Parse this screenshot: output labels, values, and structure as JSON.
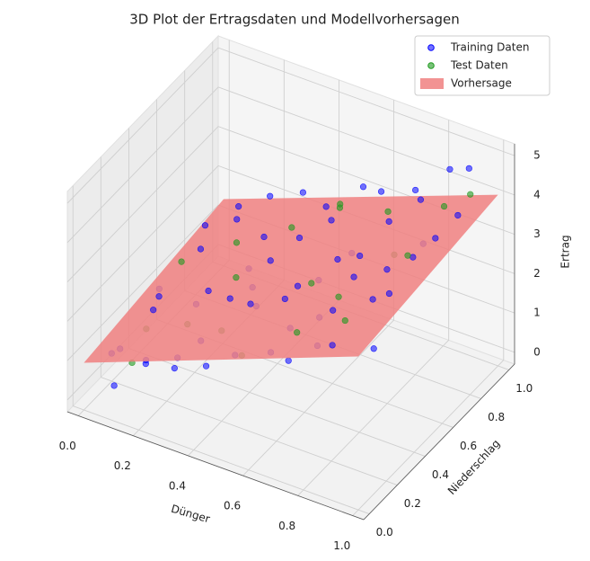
{
  "chart_data": {
    "type": "scatter3d",
    "title": "3D Plot der Ertragsdaten und Modellvorhersagen",
    "xlabel": "Dünger",
    "ylabel": "Niederschlag",
    "zlabel": "Ertrag",
    "xlim": [
      -0.04,
      1.04
    ],
    "ylim": [
      -0.04,
      1.04
    ],
    "zlim": [
      -0.3,
      5.3
    ],
    "xticks": [
      {
        "value": 0,
        "label": "0.0"
      },
      {
        "value": 0.2,
        "label": "0.2"
      },
      {
        "value": 0.4,
        "label": "0.4"
      },
      {
        "value": 0.6,
        "label": "0.6"
      },
      {
        "value": 0.8,
        "label": "0.8"
      },
      {
        "value": 1,
        "label": "1.0"
      }
    ],
    "yticks": [
      {
        "value": 0,
        "label": "0.0"
      },
      {
        "value": 0.2,
        "label": "0.2"
      },
      {
        "value": 0.4,
        "label": "0.4"
      },
      {
        "value": 0.6,
        "label": "0.6"
      },
      {
        "value": 0.8,
        "label": "0.8"
      },
      {
        "value": 1,
        "label": "1.0"
      }
    ],
    "zticks": [
      0,
      1,
      2,
      3,
      4,
      5
    ],
    "grid": true,
    "legend": "upper right",
    "series": [
      {
        "name": "Training Daten",
        "color": "#0000ff",
        "alpha": 0.55,
        "x": [
          0.05,
          0.1,
          0.02,
          0.15,
          0.08,
          0.2,
          0.25,
          0.3,
          0.22,
          0.35,
          0.4,
          0.45,
          0.38,
          0.5,
          0.55,
          0.52,
          0.6,
          0.65,
          0.7,
          0.68,
          0.75,
          0.8,
          0.85,
          0.82,
          0.9,
          0.95,
          0.92,
          0.98,
          0.12,
          0.28,
          0.33,
          0.42,
          0.47,
          0.58,
          0.62,
          0.72,
          0.77,
          0.87,
          0.97,
          0.03,
          0.18,
          0.06,
          0.27,
          0.37,
          0.48,
          0.57,
          0.67,
          0.78,
          0.88,
          0.93,
          0.1,
          0.15,
          0.45,
          0.55,
          0.73,
          0.85,
          0.32,
          0.62,
          0.07,
          0.96
        ],
        "y": [
          0.1,
          0.3,
          0.5,
          0.8,
          0.95,
          0.05,
          0.4,
          0.7,
          0.9,
          0.15,
          0.55,
          0.85,
          0.3,
          0.1,
          0.45,
          0.75,
          0.95,
          0.2,
          0.6,
          0.35,
          0.9,
          0.1,
          0.5,
          0.8,
          0.3,
          0.65,
          0.95,
          0.15,
          0.6,
          0.12,
          0.92,
          0.05,
          0.62,
          0.3,
          0.7,
          0.05,
          0.42,
          0.72,
          0.45,
          0.2,
          0.45,
          0.75,
          0.65,
          0.48,
          0.25,
          0.88,
          0.5,
          0.25,
          0.05,
          0.85,
          0.02,
          0.15,
          0.35,
          0.6,
          0.75,
          0.95,
          0.02,
          0.12,
          0.4,
          0.3
        ],
        "z": [
          0.9,
          1.4,
          1.0,
          2.0,
          1.6,
          1.2,
          1.9,
          2.3,
          2.4,
          1.8,
          2.5,
          2.9,
          2.4,
          2.0,
          2.6,
          3.1,
          3.3,
          2.7,
          3.2,
          2.5,
          3.9,
          3.0,
          3.6,
          4.2,
          3.7,
          4.1,
          4.7,
          3.2,
          1.9,
          1.3,
          2.7,
          1.7,
          3.0,
          2.9,
          2.7,
          2.6,
          3.5,
          3.5,
          4.4,
          0.6,
          1.2,
          1.8,
          1.6,
          2.0,
          2.7,
          3.6,
          3.4,
          3.3,
          3.4,
          3.9,
          0.5,
          0.8,
          2.2,
          2.2,
          3.6,
          4.5,
          1.5,
          2.3,
          1.3,
          4.0
        ]
      },
      {
        "name": "Test Daten",
        "color": "#1f9a1f",
        "alpha": 0.6,
        "x": [
          0.1,
          0.3,
          0.5,
          0.7,
          0.9,
          0.2,
          0.4,
          0.6,
          0.8,
          0.95,
          0.15,
          0.35,
          0.55,
          0.75,
          0.88,
          0.05,
          0.25,
          0.45,
          0.65,
          0.85
        ],
        "y": [
          0.25,
          0.5,
          0.85,
          0.15,
          0.55,
          0.7,
          0.2,
          0.45,
          0.65,
          0.9,
          0.05,
          0.8,
          0.05,
          0.35,
          0.85,
          0.6,
          0.25,
          0.95,
          0.9,
          0.2
        ],
        "z": [
          1.1,
          2.0,
          3.0,
          2.9,
          3.9,
          1.9,
          2.0,
          2.8,
          3.3,
          4.3,
          1.1,
          2.3,
          2.3,
          3.2,
          4.0,
          1.4,
          1.6,
          2.6,
          3.1,
          3.4
        ]
      }
    ],
    "surface": {
      "name": "Vorhersage",
      "color": "#f08080",
      "alpha": 0.85,
      "x": [
        0,
        1
      ],
      "y": [
        0,
        1
      ],
      "z": [
        [
          0.9,
          1.4
        ],
        [
          3.6,
          4.05
        ]
      ]
    }
  }
}
